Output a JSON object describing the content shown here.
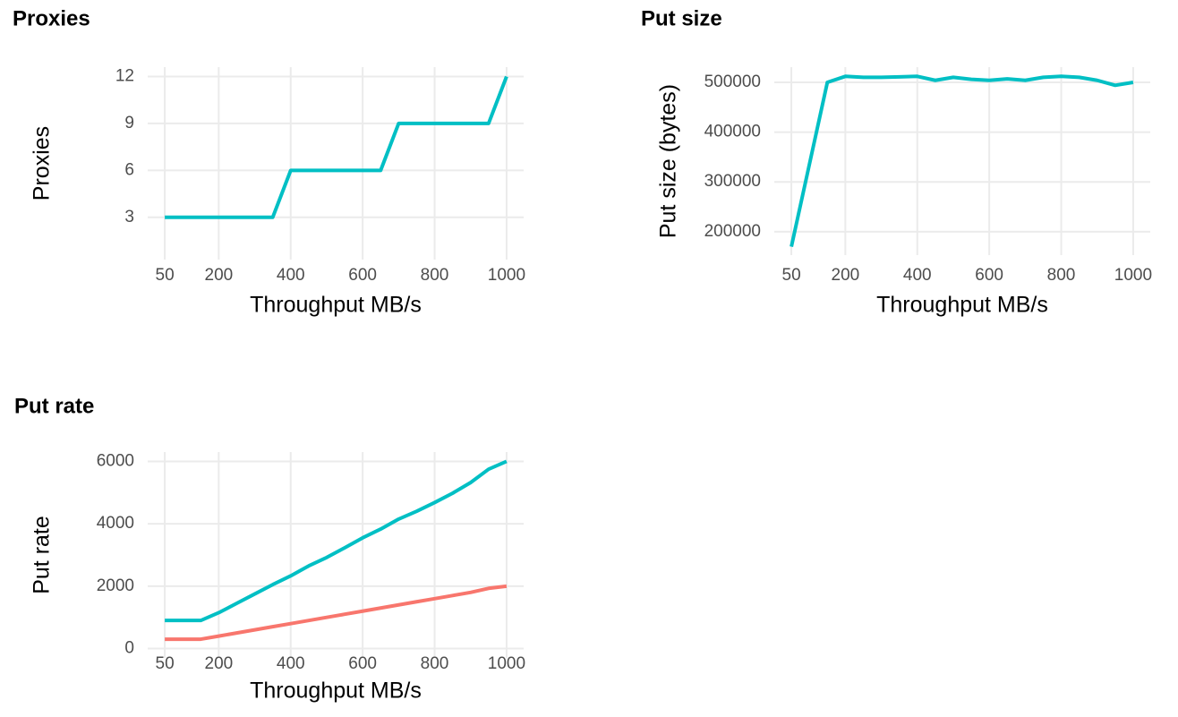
{
  "chart_data": [
    {
      "type": "line",
      "title": "Proxies",
      "x_label": "Throughput MB/s",
      "y_label": "Proxies",
      "x": [
        50,
        100,
        150,
        200,
        250,
        300,
        350,
        400,
        450,
        500,
        550,
        600,
        650,
        700,
        750,
        800,
        850,
        900,
        950,
        1000
      ],
      "series": [
        {
          "color": "#00BFC4",
          "values": [
            3,
            3,
            3,
            3,
            3,
            3,
            3,
            6,
            6,
            6,
            6,
            6,
            6,
            9,
            9,
            9,
            9,
            9,
            9,
            12
          ]
        }
      ],
      "xlim": [
        2.5,
        1047.5
      ],
      "xticks": [
        50,
        200,
        400,
        600,
        800,
        1000
      ],
      "ylim": [
        0.3,
        12.6
      ],
      "yticks": [
        3,
        6,
        9,
        12
      ],
      "grid": true
    },
    {
      "type": "line",
      "title": "Put size",
      "x_label": "Throughput MB/s",
      "y_label": "Put size (bytes)",
      "x": [
        50,
        100,
        150,
        200,
        250,
        300,
        350,
        400,
        450,
        500,
        550,
        600,
        650,
        700,
        750,
        800,
        850,
        900,
        950,
        1000
      ],
      "series": [
        {
          "color": "#00BFC4",
          "values": [
            170000,
            335000,
            500000,
            512000,
            510000,
            510000,
            511000,
            512000,
            504000,
            510000,
            506000,
            504000,
            507000,
            504000,
            510000,
            512000,
            510000,
            504000,
            494000,
            500000
          ]
        }
      ],
      "xlim": [
        2.5,
        1047.5
      ],
      "xticks": [
        50,
        200,
        400,
        600,
        800,
        1000
      ],
      "ylim": [
        153000,
        530500
      ],
      "yticks": [
        200000,
        300000,
        400000,
        500000
      ],
      "grid": true
    },
    {
      "type": "line",
      "title": "Put rate",
      "x_label": "Throughput MB/s",
      "y_label": "Put rate",
      "x": [
        50,
        100,
        150,
        200,
        250,
        300,
        350,
        400,
        450,
        500,
        550,
        600,
        650,
        700,
        750,
        800,
        850,
        900,
        950,
        1000
      ],
      "series": [
        {
          "color": "#00BFC4",
          "values": [
            900,
            900,
            900,
            1150,
            1450,
            1750,
            2050,
            2330,
            2650,
            2920,
            3230,
            3550,
            3830,
            4150,
            4400,
            4680,
            4980,
            5320,
            5750,
            6000
          ]
        },
        {
          "color": "#F8766D",
          "values": [
            300,
            300,
            300,
            400,
            500,
            600,
            700,
            800,
            900,
            1000,
            1100,
            1200,
            1300,
            1400,
            1500,
            1600,
            1700,
            1800,
            1930,
            2000
          ]
        }
      ],
      "xlim": [
        2.5,
        1047.5
      ],
      "xticks": [
        50,
        200,
        400,
        600,
        800,
        1000
      ],
      "ylim": [
        -300,
        6300
      ],
      "yticks": [
        0,
        2000,
        4000,
        6000
      ],
      "grid": true
    }
  ]
}
